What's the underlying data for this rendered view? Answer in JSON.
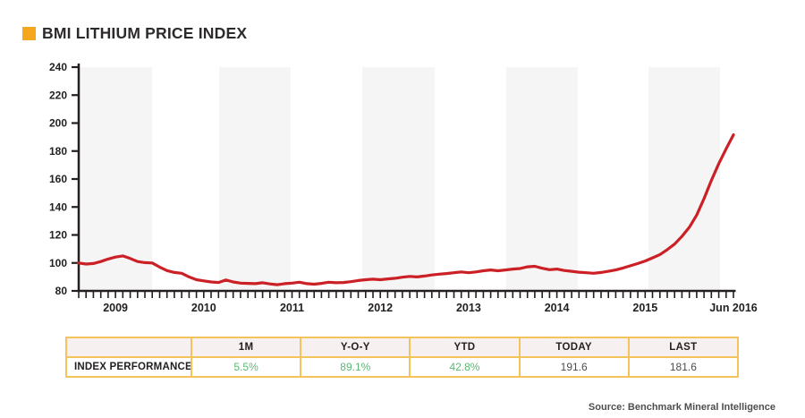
{
  "page": {
    "title": "BMI LITHIUM PRICE INDEX",
    "source": "Source: Benchmark Mineral Intelligence"
  },
  "colors": {
    "accent_square": "#f5a81e",
    "line": "#cb2026",
    "band": "#f5f5f5",
    "axis": "#231f20",
    "table_border": "#f5c35c",
    "table_header_bg": "#f6f1f0",
    "positive_value": "#5cb874",
    "value_text": "#4d4d4f",
    "title_text": "#2d2a2b",
    "source_text": "#4e4e50"
  },
  "chart_data": {
    "type": "line",
    "title": "BMI LITHIUM PRICE INDEX",
    "x_frequency": "monthly",
    "x_start": "2009-01",
    "x_end": "2016-06",
    "ylim": [
      80,
      240
    ],
    "yticks": [
      80,
      100,
      120,
      140,
      160,
      180,
      200,
      220,
      240
    ],
    "xticks": [
      {
        "label": "2009",
        "month_index": 5
      },
      {
        "label": "2010",
        "month_index": 17
      },
      {
        "label": "2011",
        "month_index": 29
      },
      {
        "label": "2012",
        "month_index": 41
      },
      {
        "label": "2013",
        "month_index": 53
      },
      {
        "label": "2014",
        "month_index": 65
      },
      {
        "label": "2015",
        "month_index": 77
      },
      {
        "label": "Jun 2016",
        "month_index": 89
      }
    ],
    "grid": "off",
    "legend": "none",
    "background_bands_frac": [
      [
        0.0,
        0.112
      ],
      [
        0.2145,
        0.3237
      ],
      [
        0.433,
        0.5437
      ],
      [
        0.653,
        0.7623
      ],
      [
        0.8702,
        0.9795
      ]
    ],
    "series": [
      {
        "name": "BMI Lithium Price Index",
        "values": [
          100.0,
          99.2,
          99.6,
          101.0,
          102.8,
          104.2,
          105.0,
          103.2,
          101.0,
          100.2,
          100.0,
          97.0,
          94.5,
          93.2,
          92.6,
          90.0,
          88.0,
          87.2,
          86.4,
          86.0,
          87.8,
          86.4,
          85.6,
          85.4,
          85.2,
          85.8,
          85.0,
          84.4,
          85.2,
          85.6,
          86.2,
          85.2,
          84.8,
          85.4,
          86.2,
          85.8,
          86.0,
          86.6,
          87.4,
          88.0,
          88.4,
          88.0,
          88.6,
          89.0,
          89.8,
          90.4,
          90.0,
          90.6,
          91.4,
          92.0,
          92.4,
          93.0,
          93.6,
          93.0,
          93.6,
          94.4,
          95.0,
          94.4,
          95.0,
          95.6,
          96.0,
          97.2,
          97.6,
          96.2,
          95.2,
          95.6,
          94.6,
          94.0,
          93.4,
          93.0,
          92.6,
          93.2,
          94.0,
          95.0,
          96.4,
          98.0,
          99.6,
          101.4,
          103.6,
          106.0,
          109.5,
          113.5,
          119.0,
          125.5,
          134.2,
          146.0,
          159.0,
          171.0,
          181.6,
          191.6
        ]
      }
    ]
  },
  "table": {
    "columns": [
      "",
      "1M",
      "Y-O-Y",
      "YTD",
      "TODAY",
      "LAST"
    ],
    "rows": [
      {
        "label": "INDEX PERFORMANCE",
        "values": [
          "5.5%",
          "89.1%",
          "42.8%",
          "191.6",
          "181.6"
        ],
        "positive_flags": [
          true,
          true,
          true,
          false,
          false
        ]
      }
    ]
  }
}
